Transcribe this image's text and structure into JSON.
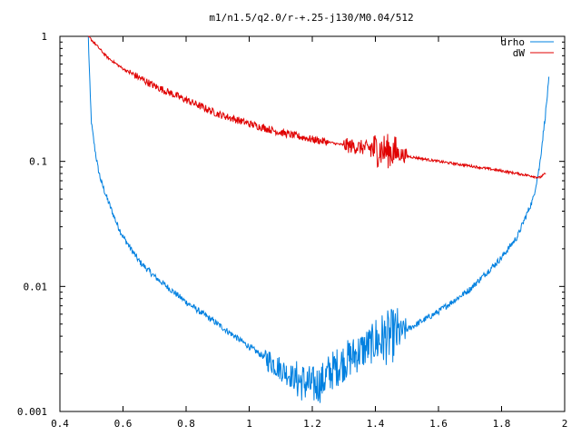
{
  "chart_data": {
    "type": "line",
    "title": "m1/n1.5/q2.0/r-+.25-j130/M0.04/512",
    "xlabel": "",
    "ylabel": "",
    "x_scale": "linear",
    "y_scale": "log",
    "xlim": [
      0.4,
      2.0
    ],
    "ylim": [
      0.001,
      1
    ],
    "x_ticks": [
      0.4,
      0.6,
      0.8,
      1.0,
      1.2,
      1.4,
      1.6,
      1.8,
      2.0
    ],
    "x_tick_labels": [
      "0.4",
      "0.6",
      "0.8",
      "1",
      "1.2",
      "1.4",
      "1.6",
      "1.8",
      "2"
    ],
    "y_ticks": [
      0.001,
      0.01,
      0.1,
      1
    ],
    "y_tick_labels": [
      "0.001",
      "0.01",
      "0.1",
      "1"
    ],
    "grid": false,
    "legend_position": "top-right",
    "series": [
      {
        "name": "drho",
        "color": "#0080e0",
        "x": [
          0.49,
          0.495,
          0.5,
          0.51,
          0.52,
          0.53,
          0.55,
          0.58,
          0.6,
          0.65,
          0.7,
          0.8,
          0.9,
          1.0,
          1.05,
          1.1,
          1.15,
          1.2,
          1.23,
          1.25,
          1.3,
          1.35,
          1.4,
          1.45,
          1.5,
          1.6,
          1.7,
          1.8,
          1.85,
          1.9,
          1.92,
          1.94,
          1.95
        ],
        "y": [
          1.0,
          0.4,
          0.2,
          0.13,
          0.09,
          0.07,
          0.05,
          0.032,
          0.025,
          0.016,
          0.012,
          0.0075,
          0.005,
          0.0033,
          0.0027,
          0.0022,
          0.0018,
          0.0016,
          0.0017,
          0.002,
          0.0025,
          0.003,
          0.0036,
          0.004,
          0.0045,
          0.0063,
          0.0095,
          0.017,
          0.025,
          0.05,
          0.09,
          0.25,
          0.45
        ]
      },
      {
        "name": "dW",
        "color": "#e00000",
        "x": [
          0.49,
          0.55,
          0.6,
          0.7,
          0.8,
          0.9,
          1.0,
          1.1,
          1.2,
          1.3,
          1.4,
          1.45,
          1.5,
          1.6,
          1.7,
          1.8,
          1.9,
          1.92,
          1.94
        ],
        "y": [
          1.0,
          0.68,
          0.55,
          0.4,
          0.31,
          0.24,
          0.2,
          0.17,
          0.15,
          0.135,
          0.125,
          0.12,
          0.11,
          0.1,
          0.092,
          0.084,
          0.076,
          0.074,
          0.08
        ]
      }
    ]
  }
}
